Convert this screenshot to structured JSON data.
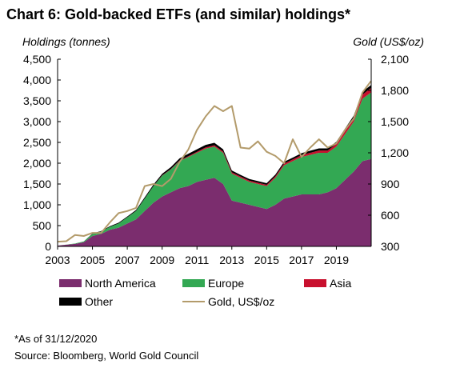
{
  "title": "Chart 6: Gold-backed ETFs (and similar) holdings*",
  "footnote": "*As of 31/12/2020",
  "source": "Source: Bloomberg, World Gold Council",
  "colors": {
    "north_america": "#7b2d6e",
    "europe": "#33a853",
    "asia": "#c8102e",
    "other": "#000000",
    "gold_line": "#b39b6b"
  },
  "chart_data": {
    "type": "area",
    "title": "Chart 6: Gold-backed ETFs (and similar) holdings*",
    "ylabel_left": "Holdings (tonnes)",
    "ylabel_right": "Gold (US$/oz)",
    "xlabel": "",
    "ylim_left": [
      0,
      4500
    ],
    "ylim_right": [
      300,
      2100
    ],
    "xlim": [
      2003,
      2021
    ],
    "grid": false,
    "legend_position": "bottom",
    "x_ticks": [
      "2003",
      "2005",
      "2007",
      "2009",
      "2011",
      "2013",
      "2015",
      "2017",
      "2019"
    ],
    "y_ticks_left": [
      "0",
      "500",
      "1,000",
      "1,500",
      "2,000",
      "2,500",
      "3,000",
      "3,500",
      "4,000",
      "4,500"
    ],
    "y_ticks_right": [
      "300",
      "600",
      "900",
      "1,200",
      "1,500",
      "1,800",
      "2,100"
    ],
    "x": [
      2003.0,
      2003.5,
      2004.0,
      2004.5,
      2005.0,
      2005.5,
      2006.0,
      2006.5,
      2007.0,
      2007.5,
      2008.0,
      2008.5,
      2009.0,
      2009.5,
      2010.0,
      2010.5,
      2011.0,
      2011.5,
      2012.0,
      2012.5,
      2013.0,
      2013.5,
      2014.0,
      2014.5,
      2015.0,
      2015.5,
      2016.0,
      2016.5,
      2017.0,
      2017.5,
      2018.0,
      2018.5,
      2019.0,
      2019.5,
      2020.0,
      2020.5,
      2020.99
    ],
    "series": [
      {
        "name": "North America",
        "axis": "left",
        "stacked": true,
        "values": [
          20,
          40,
          60,
          100,
          250,
          300,
          400,
          450,
          550,
          650,
          850,
          1050,
          1200,
          1300,
          1400,
          1450,
          1550,
          1600,
          1650,
          1500,
          1100,
          1050,
          1000,
          950,
          900,
          1000,
          1150,
          1200,
          1250,
          1250,
          1250,
          1300,
          1400,
          1600,
          1800,
          2050,
          2100
        ]
      },
      {
        "name": "Europe",
        "axis": "left",
        "stacked": true,
        "values": [
          0,
          5,
          10,
          20,
          50,
          60,
          70,
          100,
          150,
          200,
          300,
          400,
          500,
          550,
          650,
          700,
          700,
          750,
          750,
          750,
          650,
          600,
          550,
          550,
          550,
          650,
          800,
          850,
          900,
          950,
          1000,
          950,
          1000,
          1100,
          1200,
          1500,
          1600
        ]
      },
      {
        "name": "Asia",
        "axis": "left",
        "stacked": true,
        "values": [
          0,
          0,
          0,
          0,
          0,
          0,
          0,
          0,
          0,
          0,
          0,
          0,
          5,
          10,
          15,
          20,
          25,
          30,
          30,
          30,
          30,
          30,
          30,
          30,
          30,
          35,
          40,
          40,
          45,
          50,
          55,
          55,
          60,
          70,
          80,
          100,
          110
        ]
      },
      {
        "name": "Other",
        "axis": "left",
        "stacked": true,
        "values": [
          0,
          0,
          0,
          0,
          10,
          10,
          15,
          20,
          20,
          25,
          30,
          35,
          40,
          45,
          50,
          55,
          60,
          60,
          60,
          55,
          45,
          40,
          40,
          40,
          40,
          40,
          45,
          45,
          45,
          50,
          50,
          50,
          55,
          60,
          65,
          70,
          70
        ]
      },
      {
        "name": "Gold, US$/oz",
        "axis": "right",
        "type": "line",
        "values": [
          345,
          350,
          410,
          400,
          430,
          430,
          530,
          620,
          640,
          670,
          880,
          900,
          880,
          950,
          1110,
          1230,
          1420,
          1550,
          1650,
          1600,
          1650,
          1250,
          1240,
          1310,
          1210,
          1170,
          1100,
          1330,
          1160,
          1250,
          1330,
          1250,
          1290,
          1420,
          1530,
          1780,
          1890
        ]
      }
    ]
  }
}
